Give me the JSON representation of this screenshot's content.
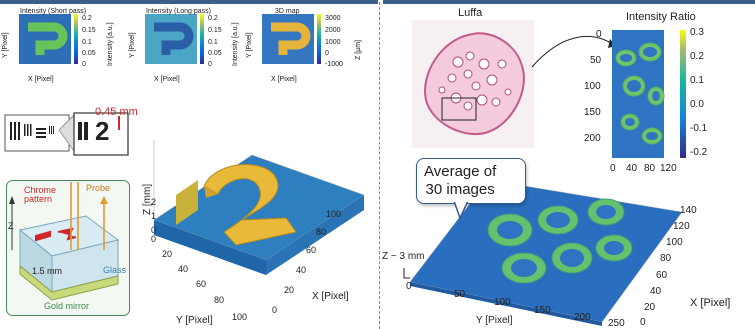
{
  "left": {
    "maps": [
      {
        "title": "Intensity (Short pass)",
        "cb_ticks": [
          "0.2",
          "0.15",
          "0.1",
          "0.05",
          "0"
        ],
        "cb_label": "Intensity [a.u.]"
      },
      {
        "title": "Intensity (Long pass)",
        "cb_ticks": [
          "0.2",
          "0.15",
          "0.1",
          "0.05",
          "0"
        ],
        "cb_label": "Intensity [a.u.]"
      },
      {
        "title": "3D map",
        "cb_ticks": [
          "3000",
          "2000",
          "1000",
          "0",
          "-1000"
        ],
        "cb_label": "Z [µm]"
      }
    ],
    "map_xlabel": "X [Pixel]",
    "map_ylabel": "Y [Pixel]",
    "map_ticks": [
      "0",
      "20",
      "40",
      "60",
      "80",
      "100"
    ],
    "scale_label": "0.45 mm",
    "target_glyph": "2",
    "schematic": {
      "chrome": "Chrome\npattern",
      "probe": "Probe",
      "z": "Z",
      "depth": "1.5 mm",
      "glass": "Glass",
      "mirror": "Gold mirror"
    },
    "surface": {
      "zlabel": "Z [mm]",
      "xlabel": "X [Pixel]",
      "ylabel": "Y [Pixel]",
      "xticks": [
        "0",
        "20",
        "40",
        "60",
        "80",
        "100"
      ],
      "yticks": [
        "0",
        "20",
        "40",
        "60",
        "80",
        "100"
      ],
      "zticks": [
        "2",
        "1",
        "0"
      ]
    }
  },
  "right": {
    "luffa_title": "Luffa",
    "ratio_title": "Intensity Ratio",
    "ratio_yticks": [
      "0",
      "50",
      "100",
      "150",
      "200"
    ],
    "ratio_xticks": [
      "0",
      "40",
      "80",
      "120"
    ],
    "ratio_cb": [
      "0.3",
      "0.2",
      "0.1",
      "0.0",
      "-0.1",
      "-0.2"
    ],
    "callout": "Average of\n30 images",
    "z_note": "Z ~ 3 mm",
    "surface": {
      "xlabel": "X [Pixel]",
      "ylabel": "Y [Pixel]",
      "yticks": [
        "0",
        "50",
        "100",
        "150",
        "200",
        "250"
      ],
      "xticks": [
        "140",
        "120",
        "100",
        "80",
        "60",
        "40",
        "20",
        "0"
      ],
      "zero": "0"
    }
  }
}
